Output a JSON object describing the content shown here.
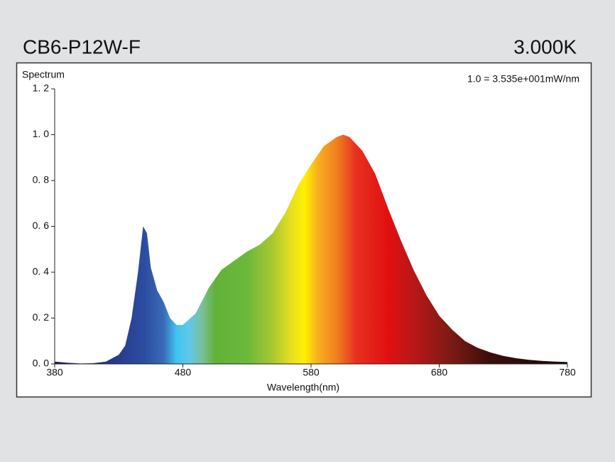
{
  "chart_data": {
    "type": "area",
    "title": "CB6-P12W-F",
    "subtitle": "3.000K",
    "ylabel": "Spectrum",
    "annotation": "1.0 =  3.535e+001mW/nm",
    "xlabel": "Wavelength(nm)",
    "x": [
      380,
      390,
      400,
      410,
      420,
      430,
      435,
      440,
      445,
      449,
      452,
      455,
      460,
      465,
      470,
      475,
      480,
      490,
      500,
      510,
      520,
      530,
      540,
      550,
      560,
      570,
      580,
      590,
      600,
      605,
      610,
      620,
      630,
      640,
      650,
      660,
      670,
      680,
      690,
      700,
      710,
      720,
      730,
      740,
      750,
      760,
      770,
      780
    ],
    "values": [
      0.01,
      0.005,
      0.002,
      0.003,
      0.01,
      0.04,
      0.08,
      0.2,
      0.4,
      0.6,
      0.57,
      0.42,
      0.32,
      0.27,
      0.2,
      0.17,
      0.17,
      0.22,
      0.33,
      0.41,
      0.45,
      0.49,
      0.52,
      0.57,
      0.66,
      0.78,
      0.87,
      0.95,
      0.99,
      1.0,
      0.99,
      0.93,
      0.83,
      0.68,
      0.54,
      0.41,
      0.3,
      0.21,
      0.15,
      0.1,
      0.07,
      0.05,
      0.035,
      0.025,
      0.018,
      0.013,
      0.01,
      0.008
    ],
    "xlim": [
      380,
      780
    ],
    "xticks": [
      380,
      480,
      580,
      680,
      780
    ],
    "ylim": [
      0,
      1.2
    ],
    "yticks": [
      {
        "value": 0,
        "label": "0. 0"
      },
      {
        "value": 0.2,
        "label": "0. 2"
      },
      {
        "value": 0.4,
        "label": "0. 4"
      },
      {
        "value": 0.6,
        "label": "0. 6"
      },
      {
        "value": 0.8,
        "label": "0. 8"
      },
      {
        "value": 1.0,
        "label": "1. 0"
      },
      {
        "value": 1.2,
        "label": "1. 2"
      }
    ],
    "grid": false
  }
}
